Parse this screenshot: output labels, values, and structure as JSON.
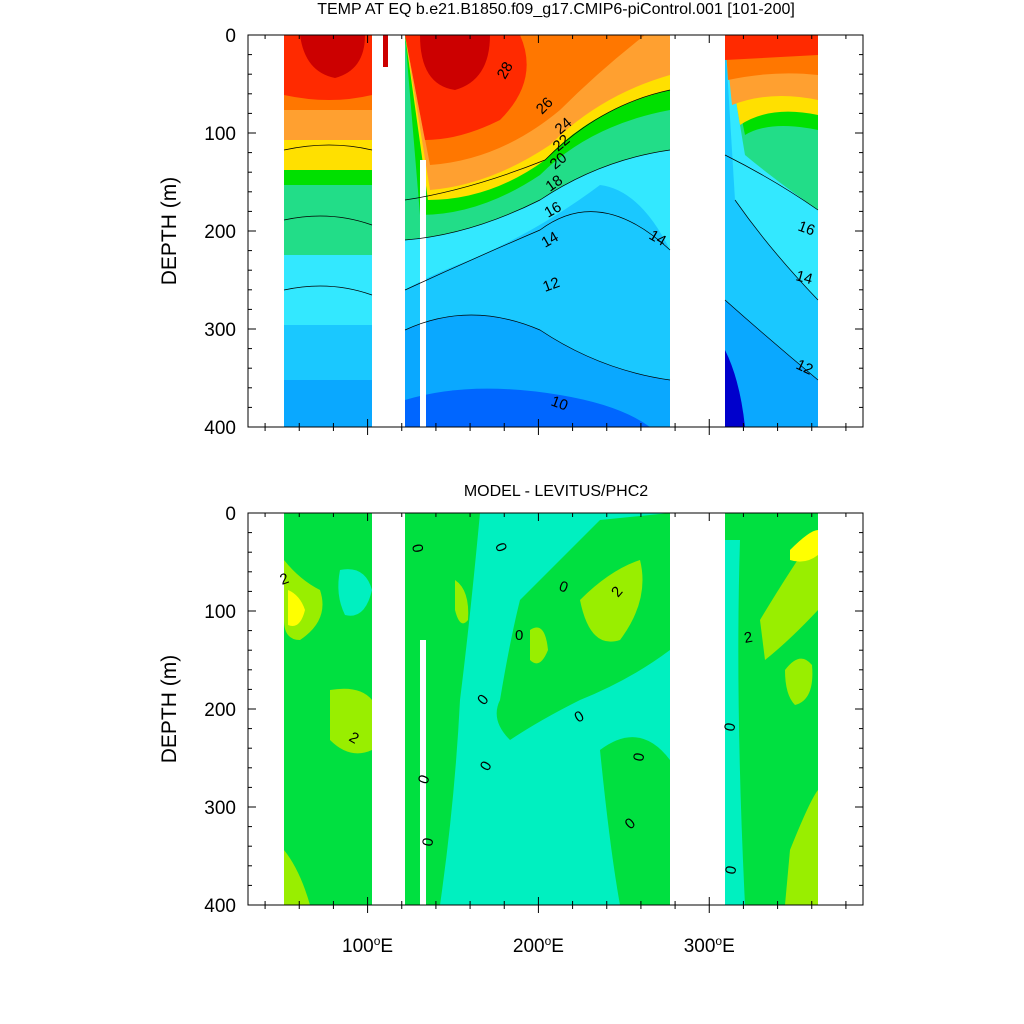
{
  "chart_data": [
    {
      "type": "heatmap",
      "title": "TEMP AT EQ b.e21.B1850.f09_g17.CMIP6-piControl.001 [101-200]",
      "ylabel": "DEPTH (m)",
      "xlabel": "",
      "x_ticks": [
        "100",
        "200",
        "300"
      ],
      "x_tick_suffix": "E",
      "y_ticks": [
        "0",
        "100",
        "200",
        "300",
        "400"
      ],
      "ylim": [
        0,
        400
      ],
      "xlim": [
        30,
        390
      ],
      "y_reversed": true,
      "contour_labels": [
        "28",
        "26",
        "24",
        "22",
        "20",
        "18",
        "16",
        "14",
        "12",
        "10",
        "14",
        "16",
        "14",
        "12"
      ],
      "colors": [
        "#cc0000",
        "#ff2a00",
        "#ff7700",
        "#ffa030",
        "#ffe000",
        "#00e000",
        "#22dd88",
        "#33e8ff",
        "#1ac8ff",
        "#0aa8ff",
        "#0066ff",
        "#0033ee",
        "#0000cc"
      ],
      "values": [
        {
          "depth": 0,
          "west_pacific": 29,
          "east_pacific": 26,
          "indian": 29,
          "atlantic": 27
        },
        {
          "depth": 50,
          "west_pacific": 29,
          "east_pacific": 22,
          "indian": 28,
          "atlantic": 24
        },
        {
          "depth": 100,
          "west_pacific": 27,
          "east_pacific": 16,
          "indian": 22,
          "atlantic": 19
        },
        {
          "depth": 150,
          "west_pacific": 20,
          "east_pacific": 14,
          "indian": 17,
          "atlantic": 16
        },
        {
          "depth": 200,
          "west_pacific": 15,
          "east_pacific": 13,
          "indian": 14,
          "atlantic": 15
        },
        {
          "depth": 300,
          "west_pacific": 11,
          "east_pacific": 12,
          "indian": 12,
          "atlantic": 12
        },
        {
          "depth": 400,
          "west_pacific": 9,
          "east_pacific": 11,
          "indian": 11,
          "atlantic": 10
        }
      ]
    },
    {
      "type": "heatmap",
      "title": "MODEL - LEVITUS/PHC2",
      "ylabel": "DEPTH (m)",
      "xlabel": "",
      "x_ticks": [
        "100",
        "200",
        "300"
      ],
      "x_tick_suffix": "E",
      "y_ticks": [
        "0",
        "100",
        "200",
        "300",
        "400"
      ],
      "ylim": [
        0,
        400
      ],
      "xlim": [
        30,
        390
      ],
      "y_reversed": true,
      "contour_labels": [
        "2",
        "2",
        "0",
        "0",
        "2",
        "0",
        "0",
        "0",
        "0",
        "0",
        "0",
        "0",
        "0",
        "2",
        "0",
        "0",
        "0"
      ],
      "colors": [
        "#00f0c0",
        "#00e040",
        "#99ee00",
        "#ffff00"
      ],
      "values": [
        {
          "depth": 0,
          "indian": 0.5,
          "west_pacific": 0.5,
          "east_pacific": 0.5,
          "atlantic": 0.5
        },
        {
          "depth": 100,
          "indian": 2.5,
          "west_pacific": 1,
          "east_pacific": 2,
          "atlantic": 2
        },
        {
          "depth": 200,
          "indian": 1.5,
          "west_pacific": 0,
          "east_pacific": 0.5,
          "atlantic": 1.5
        },
        {
          "depth": 400,
          "indian": 0.5,
          "west_pacific": 0,
          "east_pacific": 0.5,
          "atlantic": 1.5
        }
      ]
    }
  ]
}
